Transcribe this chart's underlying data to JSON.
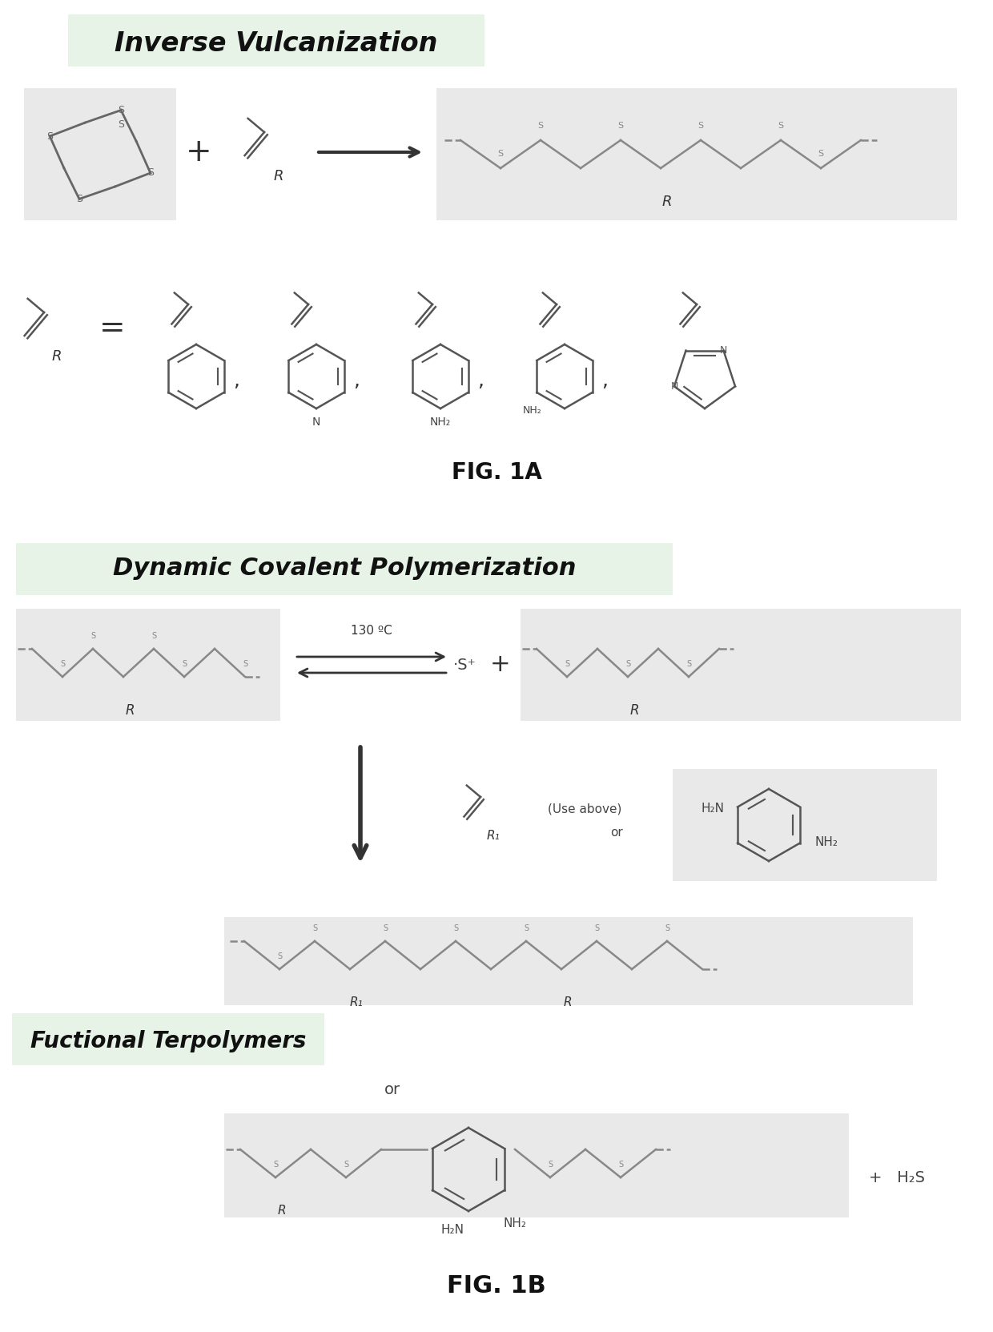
{
  "fig_width": 12.4,
  "fig_height": 16.63,
  "dpi": 100,
  "background_color": "#ffffff",
  "title_1a": "FIG. 1A",
  "title_1b": "FIG. 1B",
  "section_inverse": "Inverse Vulcanization",
  "section_dynamic": "Dynamic Covalent Polymerization",
  "section_functional": "Fuctional Terpolymers",
  "highlight_green": "#c8e6c8",
  "text_color": "#000000",
  "gray_bg": "#d0d0d0",
  "chain_color": "#888888",
  "line_color": "#444444"
}
